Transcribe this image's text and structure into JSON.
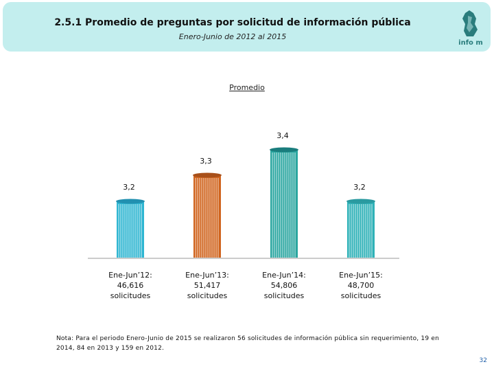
{
  "header": {
    "title": "2.5.1 Promedio de preguntas por solicitud de información pública",
    "subtitle": "Enero-Junio de 2012 al 2015",
    "logo_text": "info m"
  },
  "chart_data": {
    "type": "bar",
    "title": "Promedio",
    "categories": [
      "Ene-Jun'12",
      "Ene-Jun'13",
      "Ene-Jun'14",
      "Ene-Jun'15"
    ],
    "values": [
      3.2,
      3.3,
      3.4,
      3.2
    ],
    "value_labels": [
      "3,2",
      "3,3",
      "3,4",
      "3,2"
    ],
    "category_labels": [
      [
        "Ene-Jun’12:",
        "46,616",
        "solicitudes"
      ],
      [
        "Ene-Jun’13:",
        "51,417",
        "solicitudes"
      ],
      [
        "Ene-Jun’14:",
        "54,806",
        "solicitudes"
      ],
      [
        "Ene-Jun’15:",
        "48,700",
        "solicitudes"
      ]
    ],
    "colors": [
      "#2fb6d2",
      "#d0641e",
      "#2aa6a0",
      "#2fb2b8"
    ],
    "cap_colors": [
      "#2290b0",
      "#a8501a",
      "#1a7d7d",
      "#2a9aa0"
    ],
    "ylim": [
      0,
      3.4
    ],
    "xlabel": "",
    "ylabel": ""
  },
  "footer": {
    "note": "Nota: Para el periodo Enero-Junio de 2015 se realizaron 56 solicitudes de información pública sin requerimiento, 19 en 2014, 84 en 2013 y 159 en 2012.",
    "page_number": "32"
  }
}
